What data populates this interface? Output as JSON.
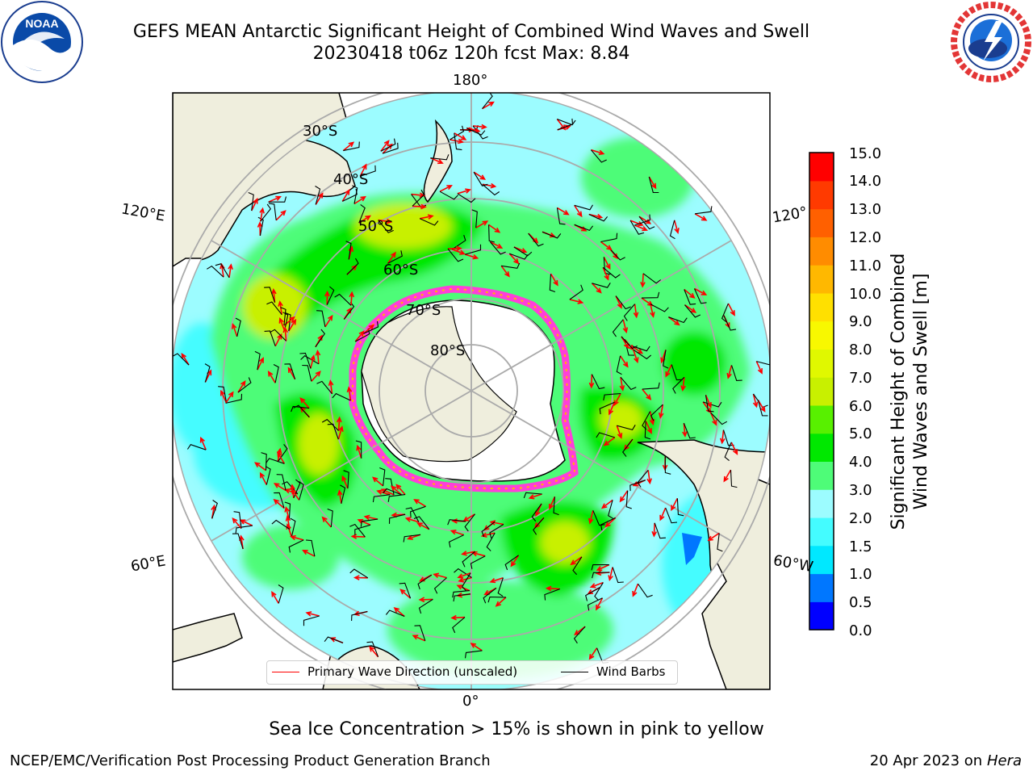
{
  "title": {
    "line1": "GEFS MEAN Antarctic Significant Height of Combined Wind Waves and Swell",
    "line2": "20230418 t06z 120h fcst   Max: 8.84"
  },
  "logos": {
    "left": "noaa-logo",
    "right": "nws-logo"
  },
  "map": {
    "projection": "south-polar-stereographic",
    "colors": {
      "land": "#efeedd",
      "ocean_default": "#9cfcff",
      "ice_edge": "#ff3fd8",
      "grid": "#aaaaaa"
    },
    "longitude_labels": [
      "180°",
      "120°E",
      "120°",
      "60°E",
      "60°W",
      "0°"
    ],
    "latitude_labels": [
      "30°S",
      "40°S",
      "50°S",
      "60°S",
      "70°S",
      "80°S"
    ]
  },
  "legend": {
    "items": [
      {
        "label": "Primary Wave Direction (unscaled)",
        "color": "#ff0000"
      },
      {
        "label": "Wind Barbs",
        "color": "#000000"
      }
    ]
  },
  "colorbar": {
    "label_line1": "Significant Height of Combined",
    "label_line2": "Wind Waves and Swell [m]",
    "ticks": [
      "15.0",
      "14.0",
      "13.0",
      "12.0",
      "11.0",
      "10.0",
      "9.0",
      "8.0",
      "7.0",
      "6.0",
      "5.0",
      "4.0",
      "3.0",
      "2.0",
      "1.5",
      "1.0",
      "0.5",
      "0.0"
    ],
    "colors": [
      "#0000ff",
      "#0077ff",
      "#00e8ff",
      "#44fcff",
      "#9cfcff",
      "#4efc78",
      "#00e800",
      "#58f000",
      "#c8f000",
      "#e0f800",
      "#f8f800",
      "#ffe000",
      "#ffb800",
      "#ff8c00",
      "#ff6000",
      "#ff3a00",
      "#ff0000"
    ]
  },
  "footer": {
    "ice_note": "Sea Ice Concentration > 15% is shown in pink to yellow",
    "left": "NCEP/EMC/Verification Post Processing Product Generation Branch",
    "date": "20 Apr 2023 on",
    "system": "Hera"
  }
}
